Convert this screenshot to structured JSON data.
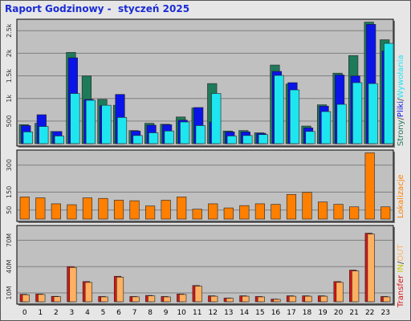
{
  "title": "Raport Godzinowy -  styczeń 2025",
  "colors": {
    "strony": "#1f7a5a",
    "pliki": "#0a14e8",
    "wywolania": "#1ee6f0",
    "lokalizacje": "#ff7f00",
    "in": "#d81515",
    "out": "#ffb060"
  },
  "labels": {
    "strony": "Strony",
    "pliki": "Pliki",
    "wywolania": "Wywołania",
    "lokalizacje": "Lokalizacje",
    "transfer": "Transfer",
    "in": "IN",
    "out": "OUT",
    "sep": "/"
  },
  "chart_data": [
    {
      "type": "bar",
      "categories": [
        "0",
        "1",
        "2",
        "3",
        "4",
        "5",
        "6",
        "7",
        "8",
        "9",
        "10",
        "11",
        "12",
        "13",
        "14",
        "15",
        "16",
        "17",
        "18",
        "19",
        "20",
        "21",
        "22",
        "23"
      ],
      "ylim": [
        0,
        2700
      ],
      "yticks": [
        "500",
        "1k",
        "1.5k",
        "2k",
        "2.5k"
      ],
      "ytick_values": [
        500,
        1000,
        1500,
        2000,
        2500
      ],
      "series": [
        {
          "name": "Strony",
          "values": [
            420,
            450,
            270,
            2020,
            1500,
            980,
            850,
            290,
            450,
            430,
            590,
            790,
            1330,
            280,
            290,
            240,
            1740,
            1320,
            390,
            860,
            1560,
            1950,
            2690,
            2300
          ]
        },
        {
          "name": "Pliki",
          "values": [
            400,
            640,
            270,
            1900,
            980,
            840,
            1090,
            280,
            410,
            420,
            520,
            800,
            480,
            260,
            260,
            230,
            1600,
            1350,
            350,
            830,
            1520,
            1500,
            2640,
            2050
          ]
        },
        {
          "name": "Wywołania",
          "values": [
            260,
            380,
            170,
            1110,
            960,
            850,
            580,
            180,
            240,
            280,
            480,
            400,
            1110,
            170,
            180,
            200,
            1510,
            1190,
            270,
            710,
            870,
            1350,
            1330,
            2220
          ]
        }
      ]
    },
    {
      "type": "bar",
      "categories": [
        "0",
        "1",
        "2",
        "3",
        "4",
        "5",
        "6",
        "7",
        "8",
        "9",
        "10",
        "11",
        "12",
        "13",
        "14",
        "15",
        "16",
        "17",
        "18",
        "19",
        "20",
        "21",
        "22",
        "23"
      ],
      "ylim": [
        0,
        370
      ],
      "yticks": [
        "50",
        "150",
        "300"
      ],
      "ytick_values": [
        50,
        150,
        300
      ],
      "series": [
        {
          "name": "Lokalizacje",
          "values": [
            123,
            118,
            85,
            80,
            118,
            115,
            105,
            102,
            73,
            105,
            123,
            55,
            85,
            62,
            75,
            85,
            82,
            137,
            148,
            95,
            82,
            68,
            368,
            68
          ]
        }
      ]
    },
    {
      "type": "bar",
      "categories": [
        "0",
        "1",
        "2",
        "3",
        "4",
        "5",
        "6",
        "7",
        "8",
        "9",
        "10",
        "11",
        "12",
        "13",
        "14",
        "15",
        "16",
        "17",
        "18",
        "19",
        "20",
        "21",
        "22",
        "23"
      ],
      "ylim": [
        0,
        84
      ],
      "yticks": [
        "10M",
        "40M",
        "70M"
      ],
      "ytick_values": [
        10,
        40,
        70
      ],
      "series": [
        {
          "name": "IN",
          "values": [
            8.5,
            8.8,
            6.2,
            40,
            23,
            6,
            29,
            6,
            7.2,
            6,
            8.8,
            18.5,
            6.8,
            4.2,
            6.8,
            6,
            3,
            6.8,
            6.8,
            6.8,
            23,
            36,
            78,
            6
          ]
        },
        {
          "name": "OUT",
          "values": [
            8,
            8.3,
            5.8,
            39,
            22,
            5.5,
            28,
            5.6,
            6.7,
            5.5,
            8.3,
            17.8,
            6.3,
            3.9,
            6.3,
            5.5,
            2.7,
            6.3,
            6.3,
            6.3,
            22,
            35,
            77,
            5.5
          ]
        }
      ]
    }
  ]
}
